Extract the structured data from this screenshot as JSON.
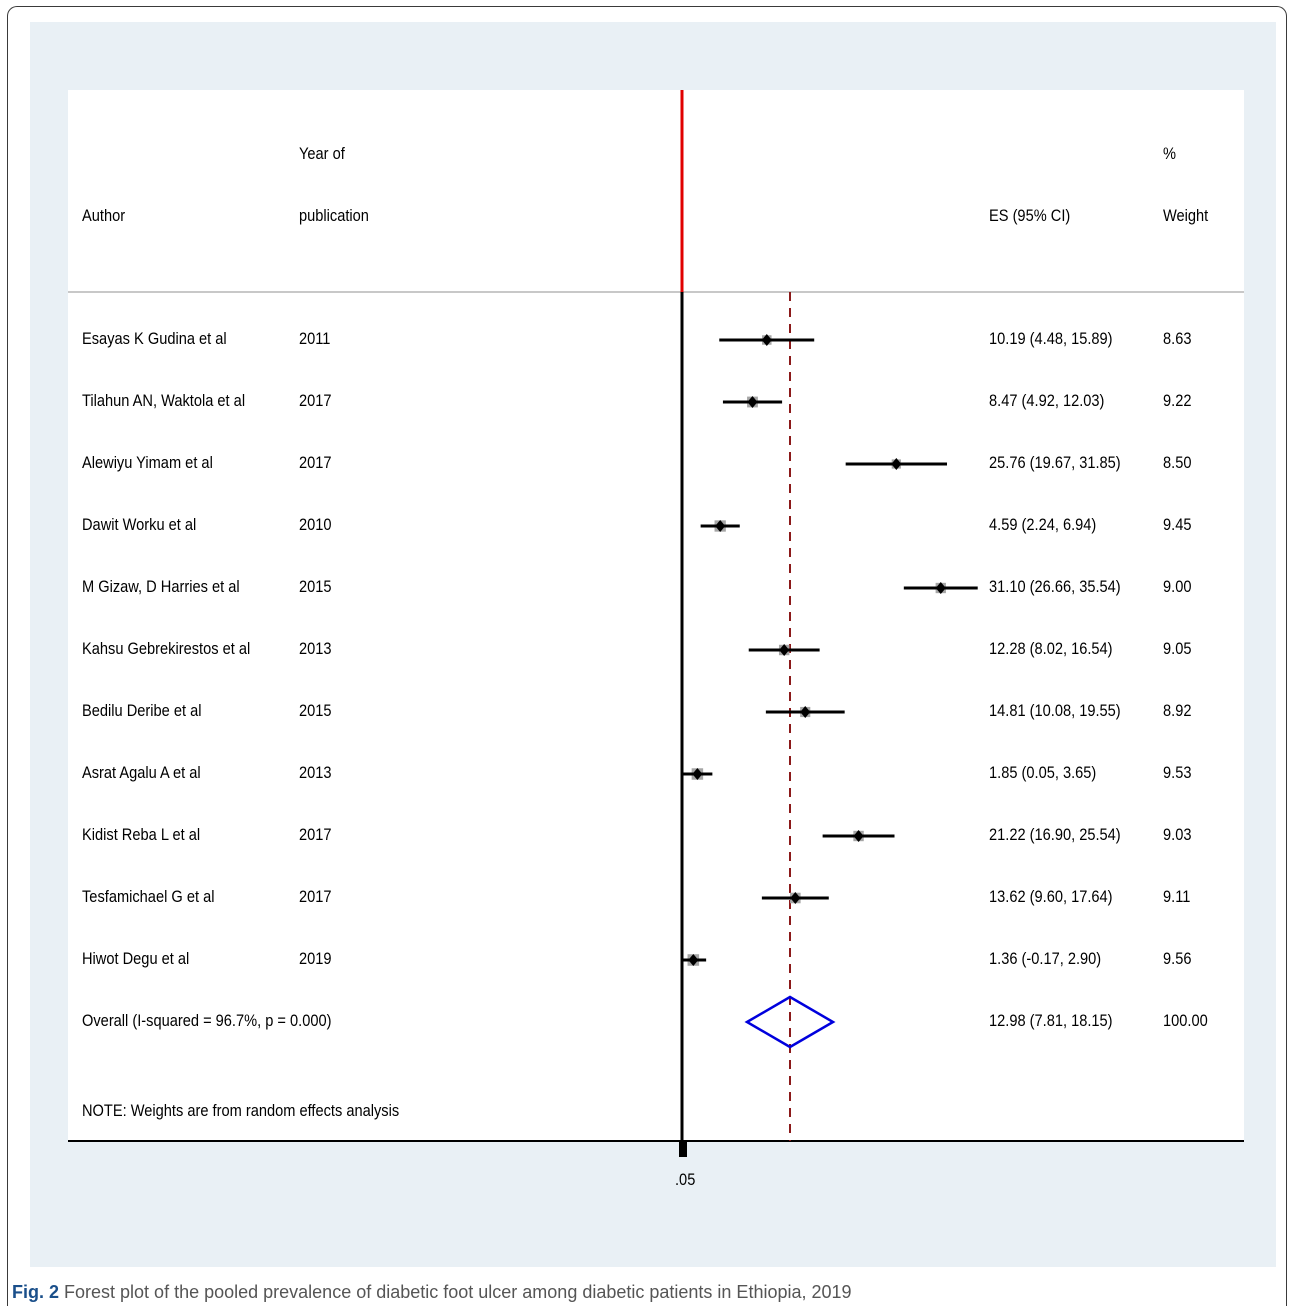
{
  "header": {
    "author": "Author",
    "year_line1": "Year of",
    "year_line2": "publication",
    "es": "ES (95% CI)",
    "weight_line1": "%",
    "weight_line2": "Weight"
  },
  "footnote": "NOTE: Weights are from random effects analysis",
  "caption": {
    "label": "Fig. 2",
    "text": " Forest plot of the pooled prevalence of diabetic foot ulcer among diabetic patients in Ethiopia, 2019"
  },
  "colors": {
    "null_line": "#e00000",
    "overall_line": "#8b1a1a",
    "diamond": "#0000dd",
    "box": "#a6a6a6",
    "panel_bg": "#e9f0f5",
    "caption_label": "#1a4f8a"
  },
  "chart_data": {
    "type": "forest",
    "x_axis_tick_label": ".05",
    "null_value": 0,
    "studies": [
      {
        "author": "Esayas K Gudina et al",
        "year": "2011",
        "es": 10.19,
        "lo": 4.48,
        "hi": 15.89,
        "ci_text": "10.19 (4.48, 15.89)",
        "weight": "8.63"
      },
      {
        "author": "Tilahun AN, Waktola et al",
        "year": "2017",
        "es": 8.47,
        "lo": 4.92,
        "hi": 12.03,
        "ci_text": "8.47 (4.92, 12.03)",
        "weight": "9.22"
      },
      {
        "author": "Alewiyu Yimam et al",
        "year": "2017",
        "es": 25.76,
        "lo": 19.67,
        "hi": 31.85,
        "ci_text": "25.76 (19.67, 31.85)",
        "weight": "8.50"
      },
      {
        "author": "Dawit Worku et al",
        "year": "2010",
        "es": 4.59,
        "lo": 2.24,
        "hi": 6.94,
        "ci_text": "4.59 (2.24, 6.94)",
        "weight": "9.45"
      },
      {
        "author": "M Gizaw, D Harries et al",
        "year": "2015",
        "es": 31.1,
        "lo": 26.66,
        "hi": 35.54,
        "ci_text": "31.10 (26.66, 35.54)",
        "weight": "9.00"
      },
      {
        "author": "Kahsu Gebrekirestos et al",
        "year": "2013",
        "es": 12.28,
        "lo": 8.02,
        "hi": 16.54,
        "ci_text": "12.28 (8.02, 16.54)",
        "weight": "9.05"
      },
      {
        "author": "Bedilu Deribe et al",
        "year": "2015",
        "es": 14.81,
        "lo": 10.08,
        "hi": 19.55,
        "ci_text": "14.81 (10.08, 19.55)",
        "weight": "8.92"
      },
      {
        "author": "Asrat Agalu A et al",
        "year": "2013",
        "es": 1.85,
        "lo": 0.05,
        "hi": 3.65,
        "ci_text": "1.85 (0.05, 3.65)",
        "weight": "9.53"
      },
      {
        "author": "Kidist Reba L et al",
        "year": "2017",
        "es": 21.22,
        "lo": 16.9,
        "hi": 25.54,
        "ci_text": "21.22 (16.90, 25.54)",
        "weight": "9.03"
      },
      {
        "author": "Tesfamichael G et al",
        "year": "2017",
        "es": 13.62,
        "lo": 9.6,
        "hi": 17.64,
        "ci_text": "13.62 (9.60, 17.64)",
        "weight": "9.11"
      },
      {
        "author": "Hiwot Degu et al",
        "year": "2019",
        "es": 1.36,
        "lo": -0.17,
        "hi": 2.9,
        "ci_text": "1.36 (-0.17, 2.90)",
        "weight": "9.56"
      }
    ],
    "overall": {
      "label": "Overall  (I-squared = 96.7%, p = 0.000)",
      "es": 12.98,
      "lo": 7.81,
      "hi": 18.15,
      "ci_text": "12.98 (7.81, 18.15)",
      "weight": "100.00"
    }
  }
}
